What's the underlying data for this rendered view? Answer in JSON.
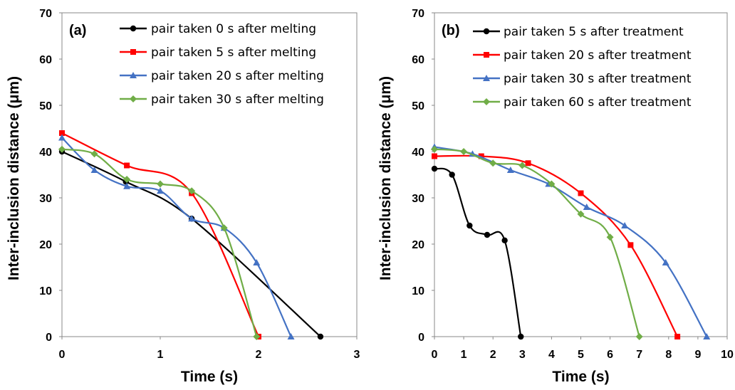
{
  "chart_data": [
    {
      "type": "line",
      "panel_label": "(a)",
      "xlabel": "Time (s)",
      "ylabel": "Inter-inclusion distance (μm)",
      "xlim": [
        0,
        3
      ],
      "ylim": [
        0,
        70
      ],
      "xticks": [
        "0",
        "1",
        "2",
        "3"
      ],
      "yticks": [
        "0",
        "10",
        "20",
        "30",
        "40",
        "50",
        "60",
        "70"
      ],
      "legend_position": "top-right",
      "grid": false,
      "series": [
        {
          "name": "pair taken 0 s after melting",
          "color": "#000000",
          "marker": "circle",
          "x": [
            0,
            0.65,
            1.32,
            2.63
          ],
          "y": [
            40,
            33.5,
            25.5,
            0
          ]
        },
        {
          "name": "pair taken 5 s after melting",
          "color": "#ff0000",
          "marker": "square",
          "x": [
            0,
            0.66,
            1.32,
            2.0
          ],
          "y": [
            44,
            37,
            31,
            0
          ]
        },
        {
          "name": "pair taken 20 s after melting",
          "color": "#4472c4",
          "marker": "triangle",
          "x": [
            0,
            0.33,
            0.66,
            1.0,
            1.32,
            1.65,
            1.98,
            2.33
          ],
          "y": [
            43,
            36,
            32.5,
            31.5,
            25.5,
            23.5,
            16,
            0
          ]
        },
        {
          "name": "pair taken 30 s after melting",
          "color": "#70ad47",
          "marker": "diamond",
          "x": [
            0,
            0.33,
            0.66,
            1.0,
            1.32,
            1.65,
            1.98
          ],
          "y": [
            40.5,
            39.5,
            34,
            33,
            31.5,
            23.5,
            0
          ]
        }
      ]
    },
    {
      "type": "line",
      "panel_label": "(b)",
      "xlabel": "Time (s)",
      "ylabel": "Inter-inclusion distance (μm)",
      "xlim": [
        0,
        10
      ],
      "ylim": [
        0,
        70
      ],
      "xticks": [
        "0",
        "1",
        "2",
        "3",
        "4",
        "5",
        "6",
        "7",
        "8",
        "9",
        "10"
      ],
      "yticks": [
        "0",
        "10",
        "20",
        "30",
        "40",
        "50",
        "60",
        "70"
      ],
      "legend_position": "top-right",
      "grid": false,
      "series": [
        {
          "name": "pair taken 5 s after treatment",
          "color": "#000000",
          "marker": "circle",
          "x": [
            0,
            0.6,
            1.2,
            1.8,
            2.4,
            2.95
          ],
          "y": [
            36.3,
            35,
            24,
            22,
            20.8,
            0
          ]
        },
        {
          "name": "pair taken 20 s after treatment",
          "color": "#ff0000",
          "marker": "square",
          "x": [
            0,
            1.6,
            3.2,
            5.0,
            6.7,
            8.3
          ],
          "y": [
            39,
            39,
            37.5,
            31,
            19.8,
            0
          ]
        },
        {
          "name": "pair taken 30 s after treatment",
          "color": "#4472c4",
          "marker": "triangle",
          "x": [
            0,
            1.3,
            2.6,
            3.9,
            5.2,
            6.5,
            7.9,
            9.3
          ],
          "y": [
            41,
            39.5,
            36,
            33,
            28,
            24,
            16,
            0
          ]
        },
        {
          "name": "pair taken 60 s after treatment",
          "color": "#70ad47",
          "marker": "diamond",
          "x": [
            0,
            1.0,
            2.0,
            3.0,
            4.0,
            5.0,
            6.0,
            7.0
          ],
          "y": [
            40.5,
            40,
            37.5,
            37,
            33,
            26.5,
            21.5,
            0
          ]
        }
      ]
    }
  ]
}
